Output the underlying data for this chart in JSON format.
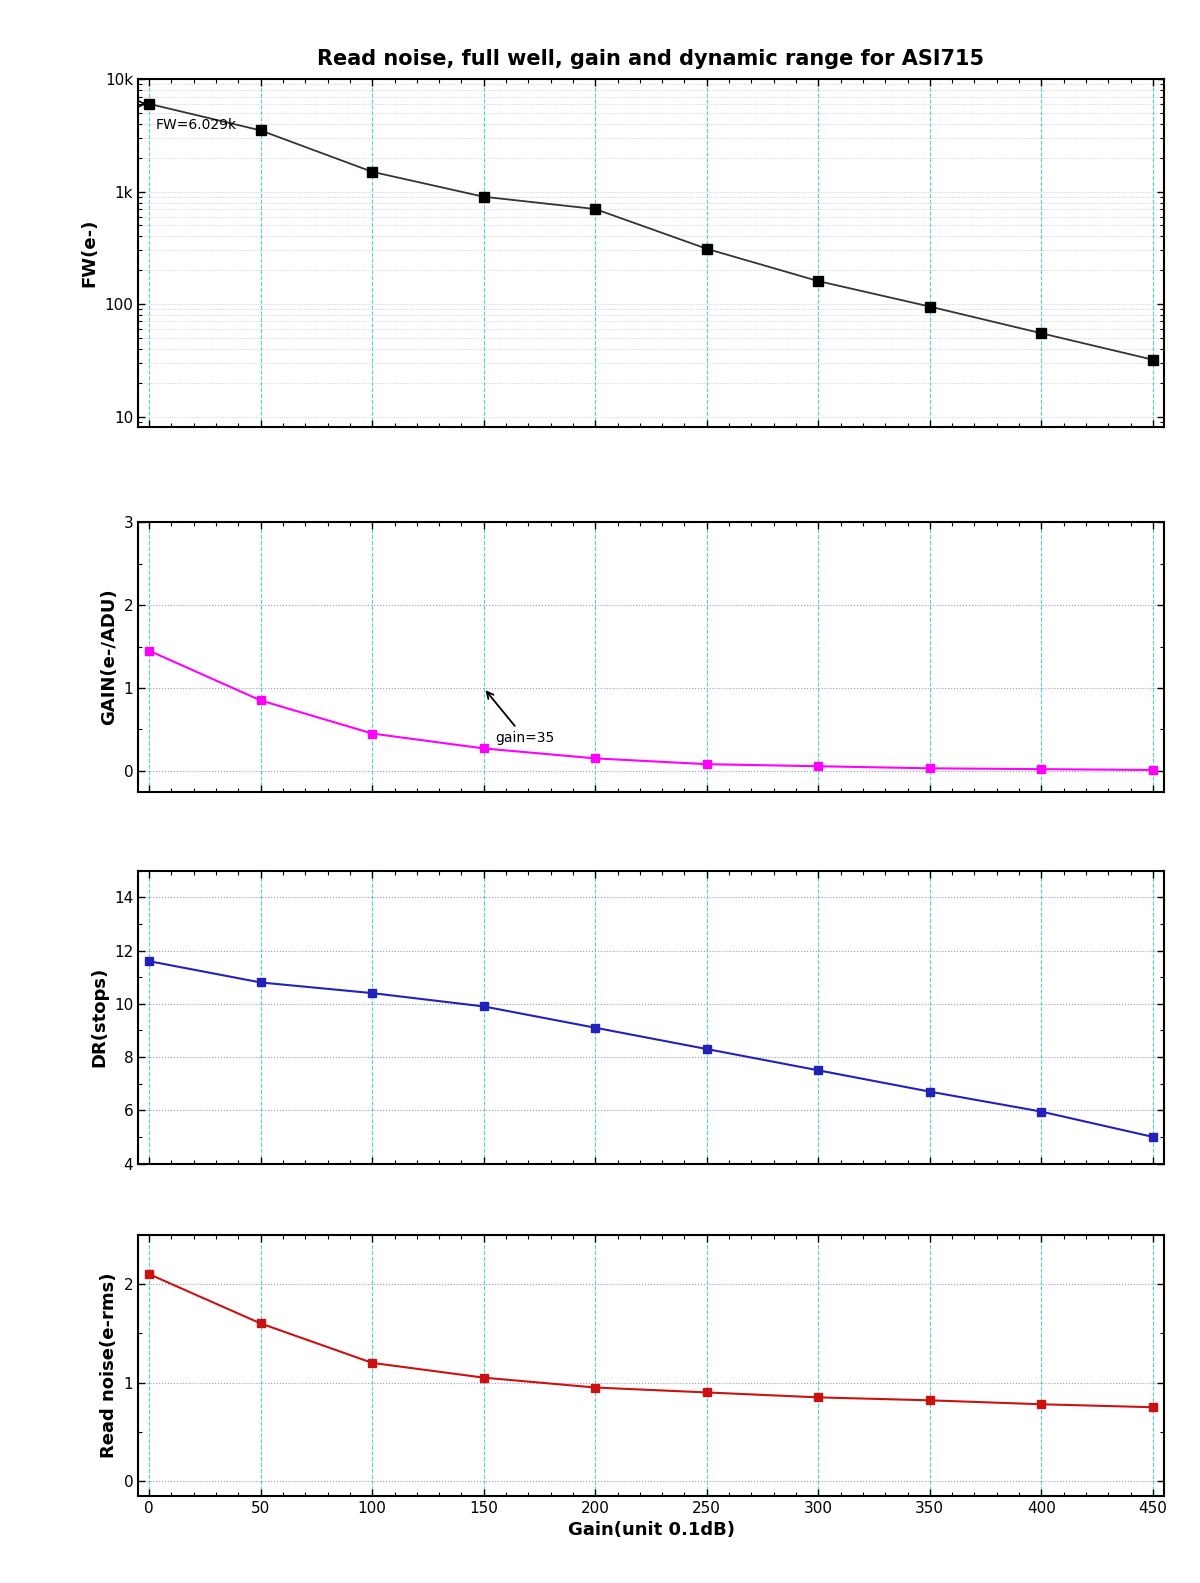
{
  "title": "Read noise, full well, gain and dynamic range for ASI715",
  "xlabel": "Gain(unit 0.1dB)",
  "gain_x": [
    0,
    50,
    100,
    150,
    200,
    250,
    300,
    350,
    400,
    450
  ],
  "fw_y": [
    6029,
    3500,
    1500,
    900,
    700,
    310,
    160,
    95,
    55,
    32
  ],
  "fw_label": "FW=6.029k",
  "fw_color": "#333333",
  "gain_y": [
    1.45,
    0.85,
    0.45,
    0.27,
    0.15,
    0.08,
    0.055,
    0.03,
    0.02,
    0.01
  ],
  "gain_color": "#FF00FF",
  "dr_y": [
    11.6,
    10.8,
    10.4,
    9.9,
    9.1,
    8.3,
    7.5,
    6.7,
    5.95,
    5.0
  ],
  "dr_color": "#2222BB",
  "dr_ylim": [
    4,
    15
  ],
  "rn_y": [
    2.1,
    1.6,
    1.2,
    1.05,
    0.95,
    0.9,
    0.85,
    0.82,
    0.78,
    0.75
  ],
  "rn_color": "#CC1111",
  "bg_color": "#FFFFFF",
  "vert_grid_color": "#44CCCC",
  "horiz_grid_color": "#9999BB",
  "fw_ylim_log": [
    8,
    10000
  ],
  "gain_ylim": [
    -0.25,
    3.0
  ],
  "rn_ylim": [
    -0.15,
    2.5
  ],
  "xlim": [
    -5,
    455
  ]
}
